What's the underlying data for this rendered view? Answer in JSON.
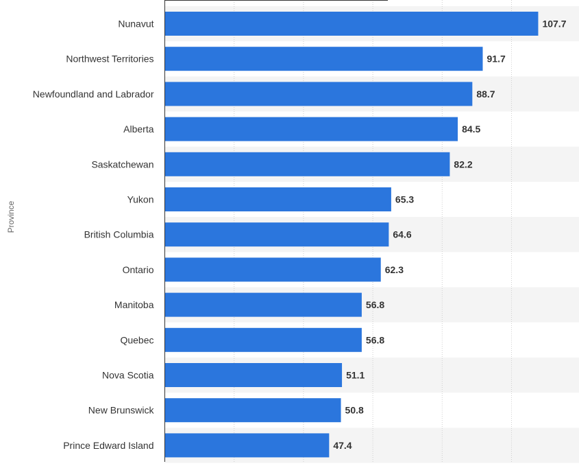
{
  "chart_data": {
    "type": "bar",
    "orientation": "horizontal",
    "title": "",
    "xlabel": "",
    "ylabel": "Province",
    "xlim": [
      0,
      120
    ],
    "grid": true,
    "bar_color": "#2b76dd",
    "stripe_color": "#f4f4f4",
    "text_color": "#333333",
    "categories": [
      "Nunavut",
      "Northwest Territories",
      "Newfoundland and Labrador",
      "Alberta",
      "Saskatchewan",
      "Yukon",
      "British Columbia",
      "Ontario",
      "Manitoba",
      "Quebec",
      "Nova Scotia",
      "New Brunswick",
      "Prince Edward Island"
    ],
    "values": [
      107.7,
      91.7,
      88.7,
      84.5,
      82.2,
      65.3,
      64.6,
      62.3,
      56.8,
      56.8,
      51.1,
      50.8,
      47.4
    ],
    "value_labels": [
      "107.7",
      "91.7",
      "88.7",
      "84.5",
      "82.2",
      "65.3",
      "64.6",
      "62.3",
      "56.8",
      "56.8",
      "51.1",
      "50.8",
      "47.4"
    ]
  }
}
